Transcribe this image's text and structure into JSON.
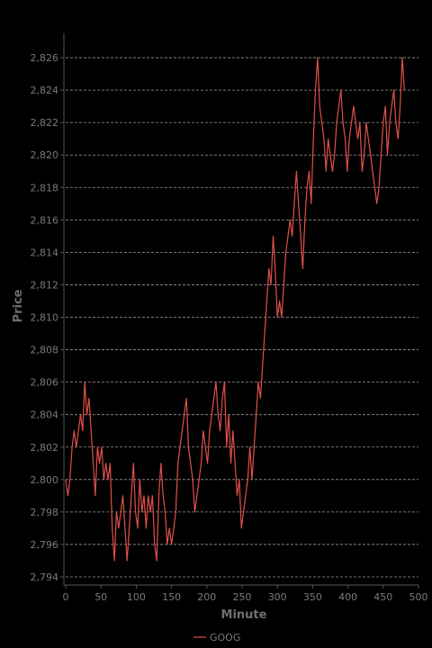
{
  "chart_data": {
    "type": "line",
    "xlabel": "Minute",
    "ylabel": "Price",
    "xlim": [
      0,
      500
    ],
    "ylim": [
      2793.5,
      2827.5
    ],
    "xticks": [
      0,
      50,
      100,
      150,
      200,
      250,
      300,
      350,
      400,
      450,
      500
    ],
    "yticks": [
      2794,
      2796,
      2798,
      2800,
      2802,
      2804,
      2806,
      2808,
      2810,
      2812,
      2814,
      2816,
      2818,
      2820,
      2822,
      2824,
      2826
    ],
    "xtick_labels": [
      "0",
      "50",
      "100",
      "150",
      "200",
      "250",
      "300",
      "350",
      "400",
      "450",
      "500"
    ],
    "ytick_labels": [
      "2,794",
      "2,796",
      "2,798",
      "2,800",
      "2,802",
      "2,804",
      "2,806",
      "2,808",
      "2,810",
      "2,812",
      "2,814",
      "2,816",
      "2,818",
      "2,820",
      "2,822",
      "2,824",
      "2,826"
    ],
    "grid": "horizontal-dashed",
    "legend_position": "bottom-center",
    "colors": {
      "background": "#000000",
      "series": "#e0504a",
      "grid": "#9a9a9a",
      "axis": "#555555"
    },
    "series": [
      {
        "name": "GOOG",
        "x": [
          0,
          3,
          6,
          9,
          12,
          15,
          18,
          21,
          24,
          27,
          30,
          33,
          36,
          39,
          42,
          45,
          48,
          51,
          54,
          57,
          60,
          63,
          66,
          69,
          72,
          75,
          78,
          81,
          84,
          87,
          90,
          93,
          96,
          99,
          102,
          105,
          108,
          111,
          114,
          117,
          120,
          123,
          126,
          129,
          132,
          135,
          138,
          141,
          144,
          147,
          150,
          153,
          156,
          159,
          162,
          165,
          168,
          171,
          174,
          177,
          180,
          183,
          186,
          189,
          192,
          195,
          198,
          201,
          204,
          207,
          210,
          213,
          216,
          219,
          222,
          225,
          228,
          231,
          234,
          237,
          240,
          243,
          246,
          249,
          252,
          255,
          258,
          261,
          264,
          267,
          270,
          273,
          276,
          279,
          282,
          285,
          288,
          291,
          294,
          297,
          300,
          303,
          306,
          309,
          312,
          315,
          318,
          321,
          324,
          327,
          330,
          333,
          336,
          339,
          342,
          345,
          348,
          351,
          354,
          357,
          360,
          363,
          366,
          369,
          372,
          375,
          378,
          381,
          384,
          387,
          390,
          393,
          396,
          399,
          402,
          405,
          408,
          411,
          414,
          417,
          420,
          423,
          426,
          429,
          432,
          435,
          438,
          441,
          444,
          447,
          450,
          453,
          456,
          459,
          462,
          465,
          468,
          471,
          474,
          477,
          480
        ],
        "values": [
          2800,
          2799,
          2800,
          2802,
          2803,
          2802,
          2803,
          2804,
          2803,
          2806,
          2804,
          2805,
          2803,
          2801,
          2799,
          2802,
          2801,
          2802,
          2800,
          2801,
          2800,
          2801,
          2797,
          2795,
          2798,
          2797,
          2798,
          2799,
          2797,
          2795,
          2797,
          2799,
          2801,
          2798,
          2797,
          2800,
          2798,
          2799,
          2797,
          2799,
          2798,
          2799,
          2796,
          2795,
          2799,
          2801,
          2799,
          2798,
          2796,
          2797,
          2796,
          2797,
          2798,
          2801,
          2802,
          2803,
          2804,
          2805,
          2802,
          2801,
          2800,
          2798,
          2799,
          2800,
          2801,
          2803,
          2802,
          2801,
          2803,
          2804,
          2805,
          2806,
          2804,
          2803,
          2805,
          2806,
          2802,
          2804,
          2801,
          2803,
          2801,
          2799,
          2800,
          2797,
          2798,
          2799,
          2800,
          2802,
          2800,
          2802,
          2804,
          2806,
          2805,
          2807,
          2809,
          2811,
          2813,
          2812,
          2815,
          2813,
          2810,
          2811,
          2810,
          2812,
          2814,
          2815,
          2816,
          2815,
          2817,
          2819,
          2817,
          2815,
          2813,
          2816,
          2818,
          2819,
          2817,
          2821,
          2824,
          2826,
          2823,
          2822,
          2821,
          2819,
          2821,
          2820,
          2819,
          2820,
          2822,
          2823,
          2824,
          2822,
          2821,
          2819,
          2821,
          2822,
          2823,
          2822,
          2821,
          2822,
          2819,
          2820,
          2822,
          2821,
          2820,
          2819,
          2818,
          2817,
          2818,
          2820,
          2822,
          2823,
          2820,
          2822,
          2823,
          2824,
          2822,
          2821,
          2823,
          2826,
          2824
        ]
      }
    ]
  }
}
